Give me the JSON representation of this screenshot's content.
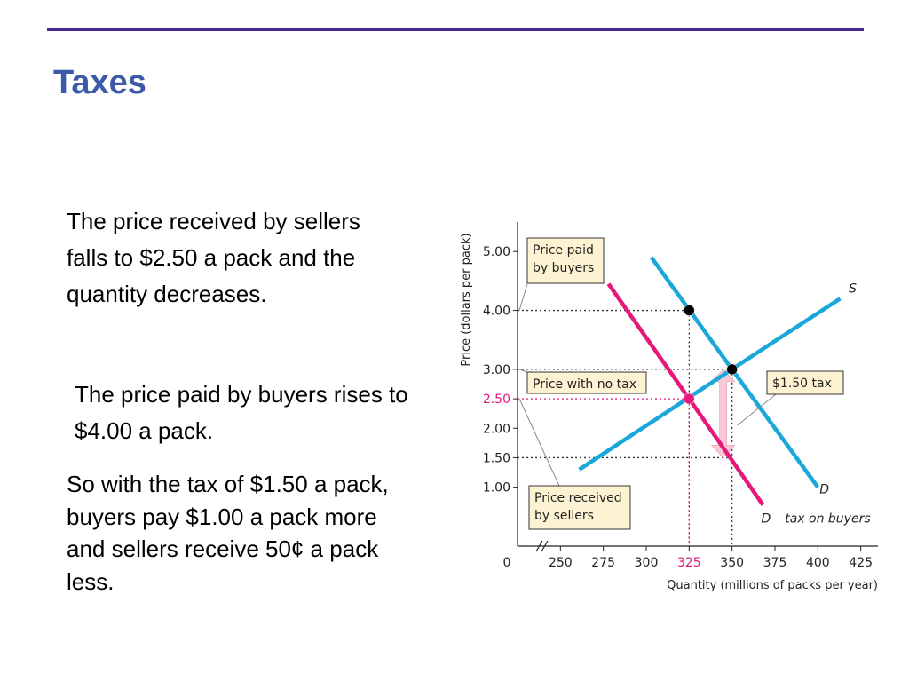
{
  "slide": {
    "title": "Taxes",
    "paragraphs": [
      "The price received by sellers falls to $2.50 a pack and the quantity decreases.",
      "The price paid by buyers rises to $4.00 a pack.",
      "So with the tax of $1.50 a pack, buyers pay $1.00 a pack more and sellers receive 50¢ a pack less."
    ]
  },
  "colors": {
    "rule": "#4b2a8f",
    "title": "#3c5aa8",
    "supply": "#1aa7d9",
    "demand": "#1aa7d9",
    "demand_tax": "#e6197a",
    "callout_fill": "#fdf3d2",
    "tax_arrow": "#f6c9d5"
  },
  "chart_data": {
    "type": "line",
    "xlabel": "Quantity (millions of packs per year)",
    "ylabel": "Price (dollars per pack)",
    "origin_label": "0",
    "x_ticks": [
      {
        "value": 250,
        "label": "250",
        "highlight": false
      },
      {
        "value": 275,
        "label": "275",
        "highlight": false
      },
      {
        "value": 300,
        "label": "300",
        "highlight": false
      },
      {
        "value": 325,
        "label": "325",
        "highlight": true
      },
      {
        "value": 350,
        "label": "350",
        "highlight": false
      },
      {
        "value": 375,
        "label": "375",
        "highlight": false
      },
      {
        "value": 400,
        "label": "400",
        "highlight": false
      },
      {
        "value": 425,
        "label": "425",
        "highlight": false
      }
    ],
    "y_ticks": [
      {
        "value": 1.0,
        "label": "1.00",
        "highlight": false
      },
      {
        "value": 1.5,
        "label": "1.50",
        "highlight": false
      },
      {
        "value": 2.0,
        "label": "2.00",
        "highlight": false
      },
      {
        "value": 2.5,
        "label": "2.50",
        "highlight": true
      },
      {
        "value": 3.0,
        "label": "3.00",
        "highlight": false
      },
      {
        "value": 4.0,
        "label": "4.00",
        "highlight": false
      },
      {
        "value": 5.0,
        "label": "5.00",
        "highlight": false
      }
    ],
    "xlim": [
      225,
      435
    ],
    "ylim": [
      0,
      5.5
    ],
    "series": [
      {
        "name": "S",
        "color": "#1aa7d9",
        "points": [
          [
            261,
            1.3
          ],
          [
            375,
            3.48
          ],
          [
            413,
            4.2
          ]
        ]
      },
      {
        "name": "D",
        "color": "#1aa7d9",
        "points": [
          [
            303,
            4.9
          ],
          [
            350,
            3.0
          ],
          [
            400,
            1.0
          ]
        ]
      },
      {
        "name": "D – tax on buyers",
        "color": "#e6197a",
        "points": [
          [
            278,
            4.45
          ],
          [
            325,
            2.5
          ],
          [
            368,
            0.7
          ]
        ]
      }
    ],
    "points": [
      {
        "x": 325,
        "y": 4.0,
        "color": "#000000"
      },
      {
        "x": 350,
        "y": 3.0,
        "color": "#000000"
      },
      {
        "x": 325,
        "y": 2.5,
        "color": "#e6197a"
      }
    ],
    "guides": [
      {
        "y": 4.0,
        "x": 325,
        "color": "#333333",
        "to_axis": "both"
      },
      {
        "y": 3.0,
        "x": 350,
        "color": "#333333",
        "to_axis": "both"
      },
      {
        "y": 2.5,
        "x": 325,
        "color": "#e6197a",
        "to_axis": "both"
      },
      {
        "y": 1.5,
        "x": 350,
        "color": "#333333",
        "to_axis": "y"
      }
    ],
    "tax_arrow": {
      "x": 350,
      "y_from": 1.5,
      "y_to": 3.0
    },
    "annotations": [
      {
        "text": "Price paid by buyers",
        "lines": [
          "Price paid",
          "by buyers"
        ]
      },
      {
        "text": "Price with no tax",
        "lines": [
          "Price with no tax"
        ]
      },
      {
        "text": "$1.50 tax",
        "lines": [
          "$1.50 tax"
        ]
      },
      {
        "text": "Price received by sellers",
        "lines": [
          "Price received",
          "by sellers"
        ]
      }
    ],
    "legend": "on-lines",
    "grid": false
  }
}
